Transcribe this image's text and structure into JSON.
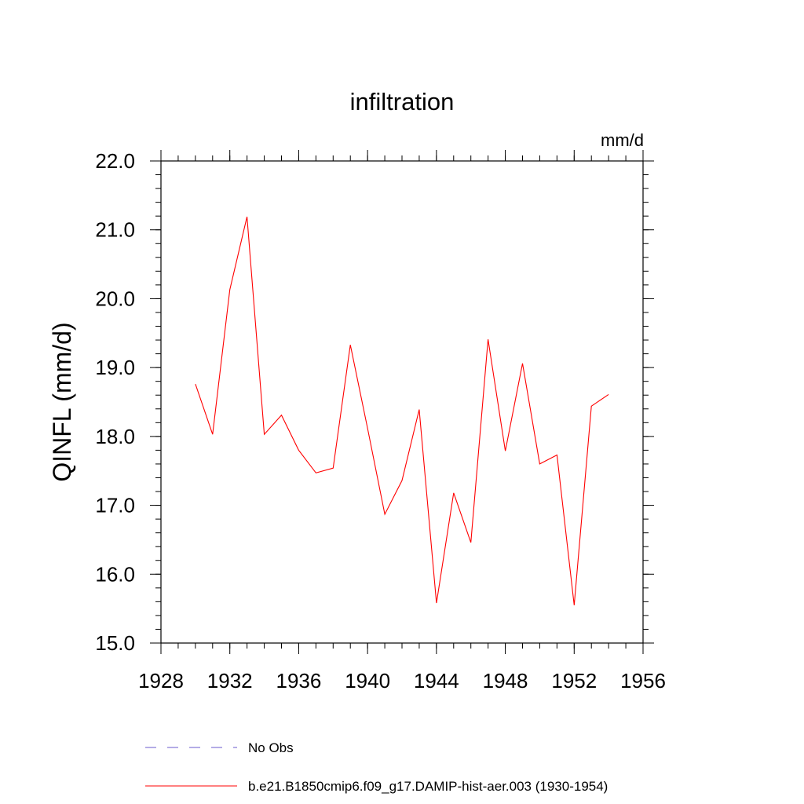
{
  "chart_data": {
    "type": "line",
    "title": "infiltration",
    "units_label": "mm/d",
    "ylabel": "QINFL  (mm/d)",
    "xlim": [
      1928,
      1956
    ],
    "ylim": [
      15.0,
      22.0
    ],
    "x_ticks": [
      1928,
      1932,
      1936,
      1940,
      1944,
      1948,
      1952,
      1956
    ],
    "x_minor_step": 1,
    "y_ticks": [
      "15.0",
      "16.0",
      "17.0",
      "18.0",
      "19.0",
      "20.0",
      "21.0",
      "22.0"
    ],
    "y_minor_step": 0.2,
    "grid": false,
    "legend_position": "bottom",
    "series": [
      {
        "name": "b.e21.B1850cmip6.f09_g17.DAMIP-hist-aer.003 (1930-1954)",
        "color": "#ff0000",
        "style": "solid",
        "x": [
          1930,
          1931,
          1932,
          1933,
          1934,
          1935,
          1936,
          1937,
          1938,
          1939,
          1940,
          1941,
          1942,
          1943,
          1944,
          1945,
          1946,
          1947,
          1948,
          1949,
          1950,
          1951,
          1952,
          1953,
          1954
        ],
        "y": [
          18.76,
          18.03,
          20.13,
          21.19,
          18.03,
          18.31,
          17.8,
          17.47,
          17.54,
          19.33,
          18.12,
          16.87,
          17.36,
          18.39,
          15.58,
          17.18,
          16.46,
          19.41,
          17.79,
          19.06,
          17.6,
          17.73,
          15.55,
          18.44,
          18.61
        ]
      }
    ],
    "legend": [
      {
        "label": "No Obs",
        "color": "#6a5acd",
        "style": "dashed"
      },
      {
        "label": "b.e21.B1850cmip6.f09_g17.DAMIP-hist-aer.003 (1930-1954)",
        "color": "#ff0000",
        "style": "solid"
      }
    ]
  }
}
